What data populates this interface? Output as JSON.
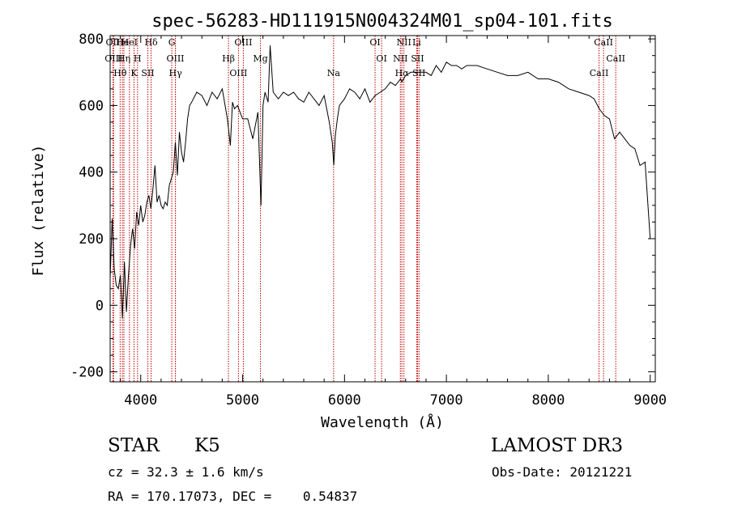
{
  "chart_data": {
    "type": "line",
    "title": "spec-56283-HD111915N004324M01_sp04-101.fits",
    "xlabel": "Wavelength (Å)",
    "ylabel": "Flux (relative)",
    "xlim": [
      3700,
      9050
    ],
    "ylim": [
      -230,
      810
    ],
    "x_ticks": [
      4000,
      5000,
      6000,
      7000,
      8000,
      9000
    ],
    "y_ticks": [
      -200,
      0,
      200,
      400,
      600,
      800
    ],
    "series": [
      {
        "x": [
          3700,
          3720,
          3740,
          3760,
          3780,
          3800,
          3820,
          3840,
          3860,
          3880,
          3900,
          3920,
          3940,
          3960,
          3980,
          4000,
          4020,
          4040,
          4060,
          4080,
          4100,
          4120,
          4140,
          4160,
          4180,
          4200,
          4220,
          4240,
          4260,
          4280,
          4300,
          4320,
          4340,
          4360,
          4380,
          4400,
          4420,
          4440,
          4460,
          4480,
          4500,
          4550,
          4600,
          4650,
          4700,
          4750,
          4800,
          4850,
          4880,
          4900,
          4920,
          4950,
          5000,
          5050,
          5100,
          5150,
          5180,
          5200,
          5220,
          5250,
          5270,
          5300,
          5350,
          5400,
          5450,
          5500,
          5550,
          5600,
          5650,
          5700,
          5750,
          5800,
          5850,
          5880,
          5895,
          5910,
          5930,
          5950,
          6000,
          6050,
          6100,
          6150,
          6200,
          6250,
          6300,
          6350,
          6400,
          6450,
          6500,
          6550,
          6563,
          6580,
          6600,
          6650,
          6700,
          6750,
          6800,
          6850,
          6900,
          6950,
          7000,
          7050,
          7100,
          7150,
          7200,
          7300,
          7400,
          7500,
          7600,
          7700,
          7800,
          7900,
          8000,
          8100,
          8200,
          8300,
          8400,
          8450,
          8500,
          8550,
          8600,
          8650,
          8700,
          8750,
          8800,
          8850,
          8900,
          8950,
          9000
        ],
        "y": [
          80,
          260,
          110,
          60,
          50,
          90,
          -40,
          130,
          -20,
          90,
          180,
          230,
          170,
          280,
          240,
          300,
          250,
          270,
          310,
          330,
          290,
          350,
          420,
          310,
          330,
          300,
          290,
          310,
          300,
          360,
          380,
          400,
          490,
          390,
          520,
          460,
          430,
          490,
          560,
          600,
          610,
          640,
          630,
          600,
          640,
          620,
          650,
          560,
          480,
          610,
          590,
          600,
          560,
          560,
          500,
          580,
          300,
          600,
          640,
          610,
          780,
          640,
          620,
          640,
          630,
          640,
          620,
          610,
          640,
          620,
          600,
          630,
          550,
          490,
          420,
          510,
          560,
          600,
          620,
          650,
          640,
          620,
          650,
          610,
          630,
          640,
          650,
          670,
          660,
          680,
          670,
          680,
          690,
          700,
          700,
          700,
          700,
          690,
          720,
          700,
          730,
          720,
          720,
          710,
          720,
          720,
          710,
          700,
          690,
          690,
          700,
          680,
          680,
          670,
          650,
          640,
          630,
          620,
          590,
          570,
          560,
          500,
          520,
          500,
          480,
          470,
          420,
          430,
          200
        ]
      }
    ],
    "line_labels": [
      {
        "label": "OII",
        "x": 3727
      },
      {
        "label": "OIII",
        "x": 3734
      },
      {
        "label": "Hθ",
        "x": 3798
      },
      {
        "label": "He",
        "x": 3820
      },
      {
        "label": "Hη",
        "x": 3835
      },
      {
        "label": "K",
        "x": 3934
      },
      {
        "label": "HeI",
        "x": 3889
      },
      {
        "label": "H",
        "x": 3969
      },
      {
        "label": "SII",
        "x": 4070
      },
      {
        "label": "Hδ",
        "x": 4102
      },
      {
        "label": "OIII",
        "x": 4340
      },
      {
        "label": "Hγ",
        "x": 4341
      },
      {
        "label": "G",
        "x": 4305
      },
      {
        "label": "Hβ",
        "x": 4861
      },
      {
        "label": "OIII",
        "x": 4959
      },
      {
        "label": "OIII",
        "x": 5007
      },
      {
        "label": "Mg",
        "x": 5175
      },
      {
        "label": "Na",
        "x": 5893
      },
      {
        "label": "OI",
        "x": 6300
      },
      {
        "label": "OI",
        "x": 6364
      },
      {
        "label": "Hα",
        "x": 6563
      },
      {
        "label": "NII",
        "x": 6583
      },
      {
        "label": "SII",
        "x": 6717
      },
      {
        "label": "SII",
        "x": 6731
      },
      {
        "label": "Li",
        "x": 6708
      },
      {
        "label": "NII",
        "x": 6548
      },
      {
        "label": "CaII",
        "x": 8498
      },
      {
        "label": "CaII",
        "x": 8542
      },
      {
        "label": "CaII",
        "x": 8662
      }
    ]
  },
  "info": {
    "class": "STAR",
    "subclass": "K5",
    "survey": "LAMOST DR3",
    "cz": "cz = 32.3 ± 1.6 km/s",
    "obs_date": "Obs-Date: 20121221",
    "radec": "RA = 170.17073, DEC =    0.54837"
  },
  "colors": {
    "line": "#000000",
    "markers": "#c00000",
    "background": "#ffffff"
  }
}
